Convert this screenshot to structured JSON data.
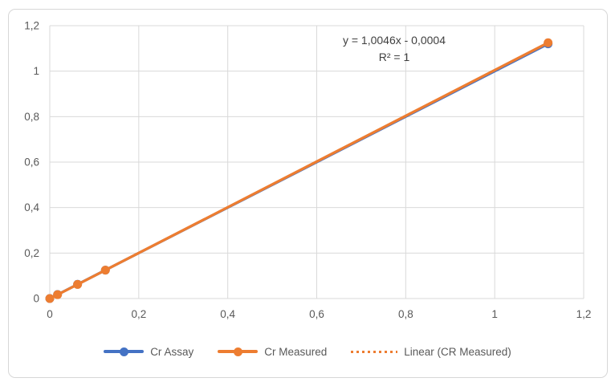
{
  "annotation": {
    "equation": "y = 1,0046x - 0,0004",
    "r_squared": "R² = 1"
  },
  "legend": {
    "items": [
      {
        "label": "Cr Assay",
        "color": "#4472C4",
        "style": "line-marker"
      },
      {
        "label": "Cr Measured",
        "color": "#ED7D31",
        "style": "line-marker"
      },
      {
        "label": "Linear (CR Measured)",
        "color": "#ED7D31",
        "style": "dotted"
      }
    ]
  },
  "chart_data": {
    "type": "line",
    "title": "",
    "xlabel": "",
    "ylabel": "",
    "xlim": [
      0,
      1.2
    ],
    "ylim": [
      0,
      1.2
    ],
    "grid": true,
    "gridline_color": "#d9d9d9",
    "tick_label_color": "#595959",
    "legend_position": "bottom",
    "x_tick_values": [
      0,
      0.2,
      0.4,
      0.6,
      0.8,
      1,
      1.2
    ],
    "x_tick_labels": [
      "0",
      "0,2",
      "0,4",
      "0,6",
      "0,8",
      "1",
      "1,2"
    ],
    "y_tick_values": [
      0,
      0.2,
      0.4,
      0.6,
      0.8,
      1,
      1.2
    ],
    "y_tick_labels": [
      "0",
      "0,2",
      "0,4",
      "0,6",
      "0,8",
      "1",
      "1,2"
    ],
    "series": [
      {
        "name": "Cr Assay",
        "color": "#4472C4",
        "marker": "circle",
        "x": [
          0,
          0.0175,
          0.0625,
          0.125,
          1.12
        ],
        "y": [
          0,
          0.0175,
          0.0625,
          0.125,
          1.12
        ]
      },
      {
        "name": "Cr Measured",
        "color": "#ED7D31",
        "marker": "circle",
        "x": [
          0,
          0.0175,
          0.0625,
          0.125,
          1.12
        ],
        "y": [
          0,
          0.017,
          0.062,
          0.125,
          1.125
        ]
      }
    ],
    "trendline": {
      "name": "Linear (CR Measured)",
      "color": "#ED7D31",
      "style": "dotted",
      "slope": 1.0046,
      "intercept": -0.0004,
      "x_range": [
        0,
        1.12
      ],
      "equation_label": "y = 1,0046x - 0,0004",
      "r_squared_label": "R² = 1"
    }
  }
}
